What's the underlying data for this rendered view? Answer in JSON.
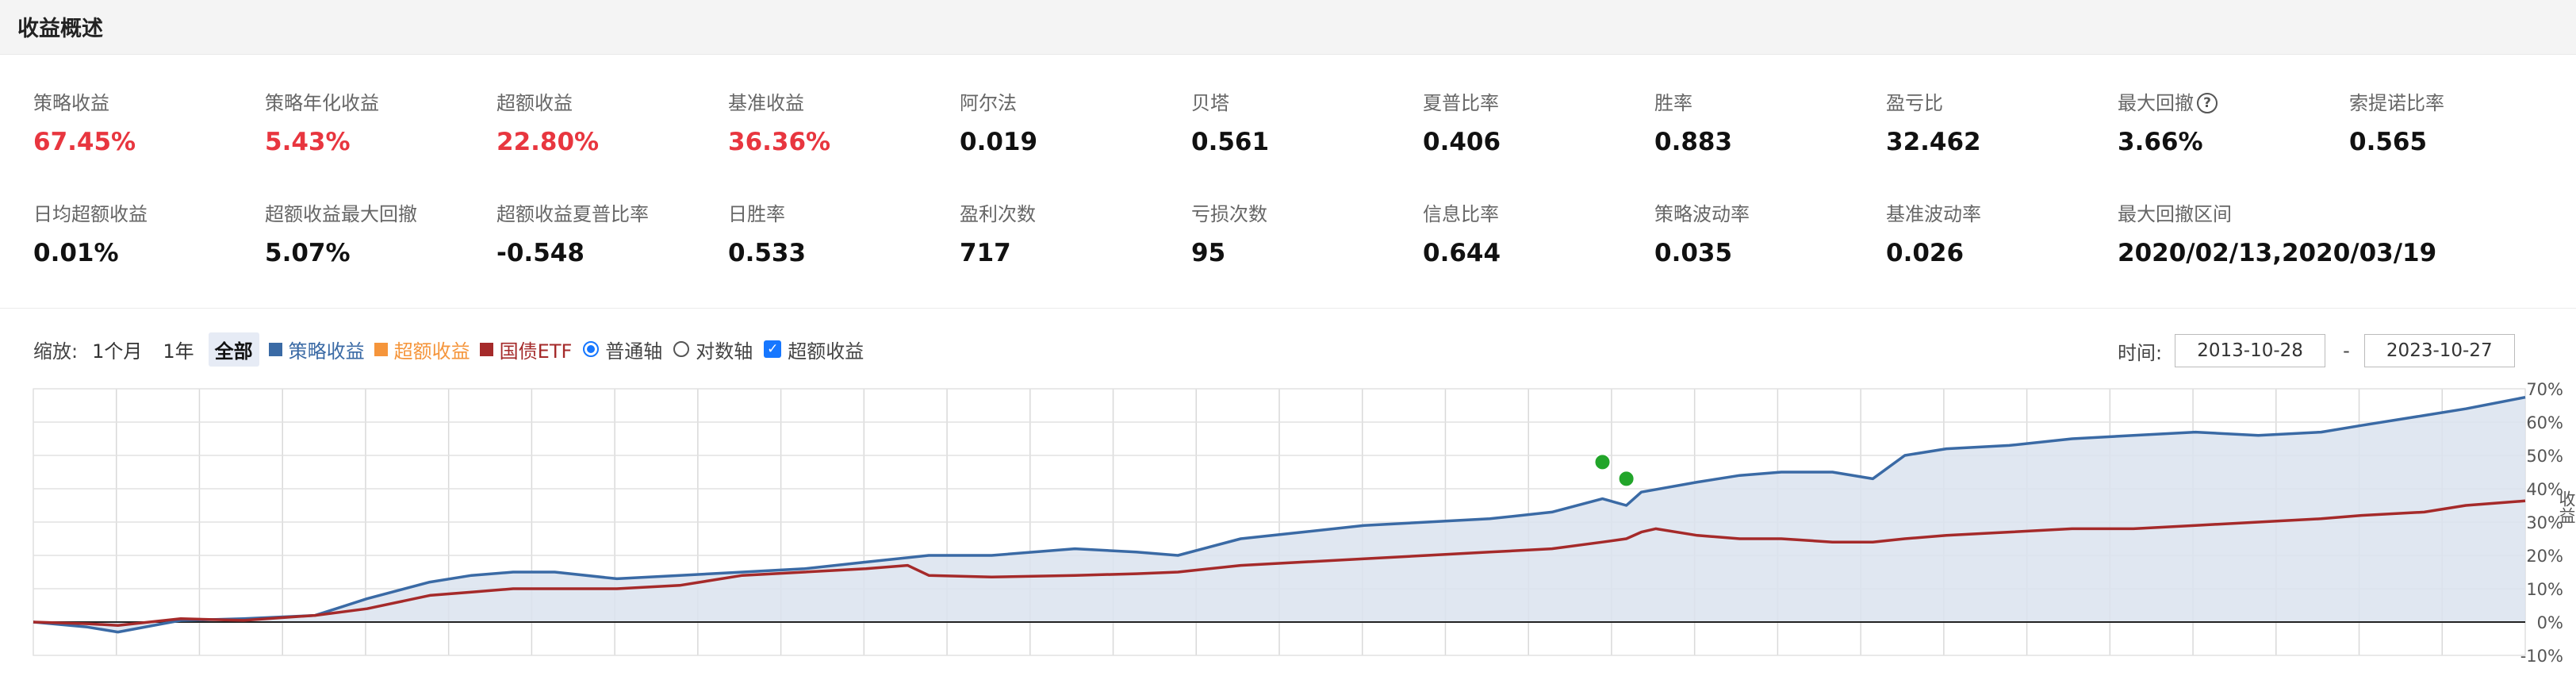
{
  "header": {
    "title": "收益概述"
  },
  "metrics_row1": [
    {
      "label": "策略收益",
      "value": "67.45%",
      "red": true
    },
    {
      "label": "策略年化收益",
      "value": "5.43%",
      "red": true
    },
    {
      "label": "超额收益",
      "value": "22.80%",
      "red": true
    },
    {
      "label": "基准收益",
      "value": "36.36%",
      "red": true
    },
    {
      "label": "阿尔法",
      "value": "0.019"
    },
    {
      "label": "贝塔",
      "value": "0.561"
    },
    {
      "label": "夏普比率",
      "value": "0.406"
    },
    {
      "label": "胜率",
      "value": "0.883"
    },
    {
      "label": "盈亏比",
      "value": "32.462"
    },
    {
      "label": "最大回撤",
      "value": "3.66%",
      "help": "?"
    },
    {
      "label": "索提诺比率",
      "value": "0.565"
    }
  ],
  "metrics_row2": [
    {
      "label": "日均超额收益",
      "value": "0.01%"
    },
    {
      "label": "超额收益最大回撤",
      "value": "5.07%"
    },
    {
      "label": "超额收益夏普比率",
      "value": "-0.548"
    },
    {
      "label": "日胜率",
      "value": "0.533"
    },
    {
      "label": "盈利次数",
      "value": "717"
    },
    {
      "label": "亏损次数",
      "value": "95"
    },
    {
      "label": "信息比率",
      "value": "0.644"
    },
    {
      "label": "策略波动率",
      "value": "0.035"
    },
    {
      "label": "基准波动率",
      "value": "0.026"
    },
    {
      "label": "最大回撤区间",
      "value": "2020/02/13,2020/03/19"
    }
  ],
  "toolbar": {
    "zoom_label": "缩放:",
    "zoom_options": [
      "1个月",
      "1年",
      "全部"
    ],
    "zoom_selected": "全部",
    "legend": [
      {
        "label": "策略收益",
        "color": "#3a6aa5"
      },
      {
        "label": "超额收益",
        "color": "#f5953b"
      },
      {
        "label": "国债ETF",
        "color": "#a52a2a"
      }
    ],
    "axis_options": [
      "普通轴",
      "对数轴"
    ],
    "axis_selected": "普通轴",
    "excess_checkbox": {
      "label": "超额收益",
      "checked": true
    }
  },
  "time_range": {
    "label": "时间:",
    "start": "2013-10-28",
    "separator": "-",
    "end": "2023-10-27"
  },
  "chart_data": {
    "type": "area",
    "x_range": [
      "2013-10-28",
      "2023-10-27"
    ],
    "ylabel": "收益",
    "ylim": [
      -10,
      70
    ],
    "yticks": [
      "70%",
      "60%",
      "50%",
      "40%",
      "30%",
      "20%",
      "10%",
      "0%",
      "-10%"
    ],
    "grid": true,
    "series": [
      {
        "name": "策略收益",
        "color": "#3a6aa5",
        "fill": "#dbe3ee",
        "points": [
          [
            "2013-10-28",
            0
          ],
          [
            "2014-01-15",
            -1.5
          ],
          [
            "2014-03-01",
            -3
          ],
          [
            "2014-06-01",
            0.5
          ],
          [
            "2014-09-01",
            1
          ],
          [
            "2014-12-15",
            2
          ],
          [
            "2015-03-01",
            7
          ],
          [
            "2015-06-01",
            12
          ],
          [
            "2015-08-01",
            14
          ],
          [
            "2015-10-01",
            15
          ],
          [
            "2015-12-01",
            15
          ],
          [
            "2016-03-01",
            13
          ],
          [
            "2016-06-01",
            14
          ],
          [
            "2016-09-01",
            15
          ],
          [
            "2016-12-01",
            16
          ],
          [
            "2017-03-01",
            18
          ],
          [
            "2017-06-01",
            20
          ],
          [
            "2017-09-01",
            20
          ],
          [
            "2018-01-01",
            22
          ],
          [
            "2018-04-01",
            21
          ],
          [
            "2018-06-01",
            20
          ],
          [
            "2018-09-01",
            25
          ],
          [
            "2018-12-01",
            27
          ],
          [
            "2019-03-01",
            29
          ],
          [
            "2019-06-01",
            30
          ],
          [
            "2019-09-01",
            31
          ],
          [
            "2019-12-01",
            33
          ],
          [
            "2020-02-13",
            37
          ],
          [
            "2020-03-19",
            35
          ],
          [
            "2020-04-10",
            39
          ],
          [
            "2020-07-01",
            42
          ],
          [
            "2020-09-01",
            44
          ],
          [
            "2020-11-01",
            45
          ],
          [
            "2021-01-15",
            45
          ],
          [
            "2021-03-15",
            43
          ],
          [
            "2021-05-01",
            50
          ],
          [
            "2021-07-01",
            52
          ],
          [
            "2021-10-01",
            53
          ],
          [
            "2022-01-01",
            55
          ],
          [
            "2022-04-01",
            56
          ],
          [
            "2022-07-01",
            57
          ],
          [
            "2022-10-01",
            56
          ],
          [
            "2023-01-01",
            57
          ],
          [
            "2023-03-01",
            59
          ],
          [
            "2023-06-01",
            62
          ],
          [
            "2023-08-01",
            64
          ],
          [
            "2023-10-27",
            67.45
          ]
        ]
      },
      {
        "name": "国债ETF",
        "color": "#a52a2a",
        "points": [
          [
            "2013-10-28",
            0
          ],
          [
            "2014-01-15",
            -0.5
          ],
          [
            "2014-03-01",
            -1
          ],
          [
            "2014-06-01",
            1
          ],
          [
            "2014-09-01",
            0.5
          ],
          [
            "2014-12-15",
            2
          ],
          [
            "2015-03-01",
            4
          ],
          [
            "2015-06-01",
            8
          ],
          [
            "2015-08-01",
            9
          ],
          [
            "2015-10-01",
            10
          ],
          [
            "2015-12-01",
            10
          ],
          [
            "2016-03-01",
            10
          ],
          [
            "2016-06-01",
            11
          ],
          [
            "2016-09-01",
            14
          ],
          [
            "2016-12-01",
            15
          ],
          [
            "2017-03-01",
            16
          ],
          [
            "2017-05-01",
            17
          ],
          [
            "2017-06-01",
            14
          ],
          [
            "2017-09-01",
            13.5
          ],
          [
            "2018-01-01",
            14
          ],
          [
            "2018-04-01",
            14.5
          ],
          [
            "2018-06-01",
            15
          ],
          [
            "2018-09-01",
            17
          ],
          [
            "2018-12-01",
            18
          ],
          [
            "2019-03-01",
            19
          ],
          [
            "2019-06-01",
            20
          ],
          [
            "2019-09-01",
            21
          ],
          [
            "2019-12-01",
            22
          ],
          [
            "2020-02-13",
            24
          ],
          [
            "2020-03-19",
            25
          ],
          [
            "2020-04-10",
            27
          ],
          [
            "2020-05-01",
            28
          ],
          [
            "2020-07-01",
            26
          ],
          [
            "2020-09-01",
            25
          ],
          [
            "2020-11-01",
            25
          ],
          [
            "2021-01-15",
            24
          ],
          [
            "2021-03-15",
            24
          ],
          [
            "2021-05-01",
            25
          ],
          [
            "2021-07-01",
            26
          ],
          [
            "2021-10-01",
            27
          ],
          [
            "2022-01-01",
            28
          ],
          [
            "2022-04-01",
            28
          ],
          [
            "2022-07-01",
            29
          ],
          [
            "2022-10-01",
            30
          ],
          [
            "2023-01-01",
            31
          ],
          [
            "2023-03-01",
            32
          ],
          [
            "2023-06-01",
            33
          ],
          [
            "2023-08-01",
            35
          ],
          [
            "2023-10-27",
            36.36
          ]
        ]
      }
    ],
    "markers": [
      {
        "x": "2020-02-13",
        "y": 48,
        "color": "#22a52a"
      },
      {
        "x": "2020-03-19",
        "y": 43,
        "color": "#22a52a"
      }
    ]
  }
}
